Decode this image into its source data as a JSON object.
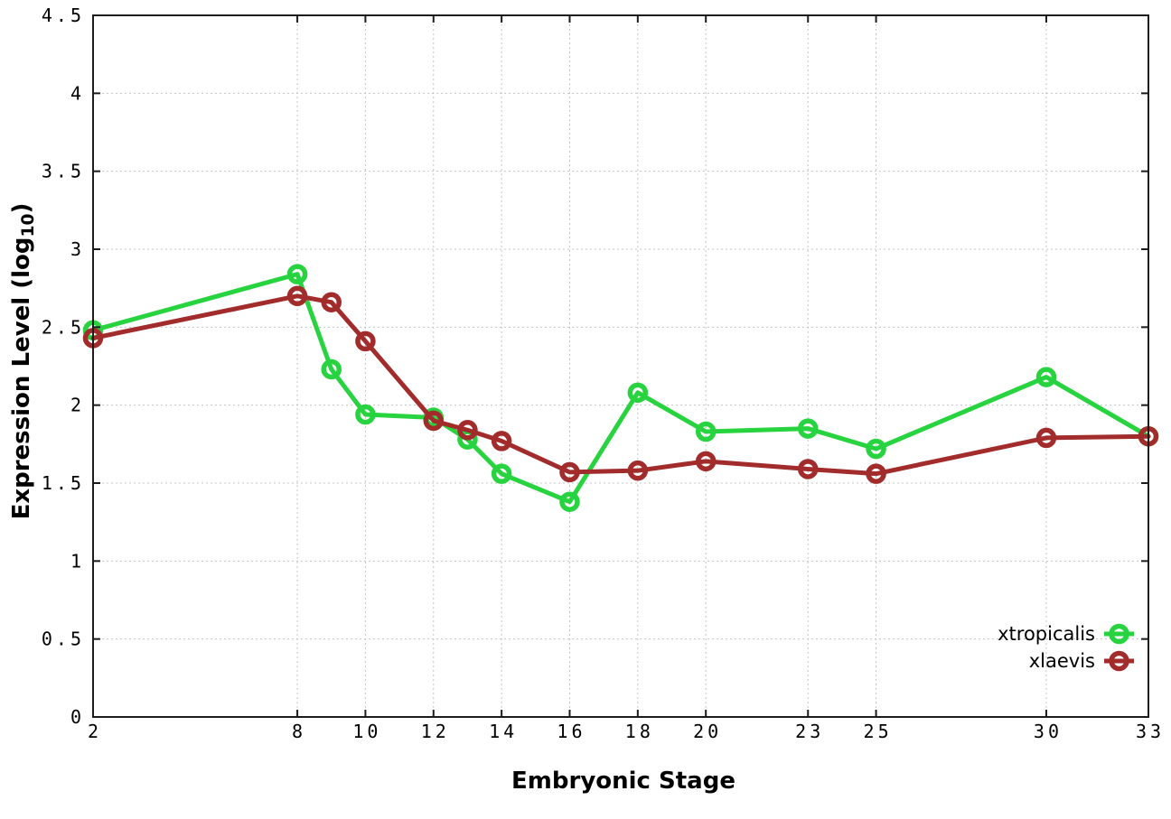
{
  "figure": {
    "background": "#ffffff",
    "border_color": "#1c1c1c",
    "grid_color": "#c4c4c4",
    "text_color": "#000000",
    "ylabel_main": "Expression Level (log",
    "ylabel_sub": "10",
    "ylabel_close": ")"
  },
  "chart_data": {
    "type": "line",
    "title": "",
    "xlabel": "Embryonic Stage",
    "ylabel": "Expression Level (log10)",
    "x": [
      2,
      8,
      9,
      10,
      12,
      13,
      14,
      16,
      18,
      20,
      23,
      25,
      30,
      33
    ],
    "series": [
      {
        "name": "xtropicalis",
        "color": "#27d33f",
        "marker": "open-circle",
        "values": [
          2.48,
          2.84,
          2.23,
          1.94,
          1.92,
          1.78,
          1.56,
          1.38,
          2.08,
          1.83,
          1.85,
          1.72,
          2.18,
          1.8
        ]
      },
      {
        "name": "xlaevis",
        "color": "#a22c2c",
        "marker": "open-circle",
        "values": [
          2.43,
          2.7,
          2.66,
          2.41,
          1.9,
          1.84,
          1.77,
          1.57,
          1.58,
          1.64,
          1.59,
          1.56,
          1.79,
          1.8
        ]
      }
    ],
    "x_ticks": [
      2,
      8,
      10,
      12,
      14,
      16,
      18,
      20,
      23,
      25,
      30,
      33
    ],
    "y_ticks": [
      0,
      0.5,
      1,
      1.5,
      2,
      2.5,
      3,
      3.5,
      4,
      4.5
    ],
    "x_tick_labels": [
      "2",
      "8",
      "10",
      "12",
      "14",
      "16",
      "18",
      "20",
      "23",
      "25",
      "30",
      "33"
    ],
    "y_tick_labels": [
      "0",
      "0.5",
      "1",
      "1.5",
      "2",
      "2.5",
      "3",
      "3.5",
      "4",
      "4.5"
    ],
    "xlim": [
      2,
      33
    ],
    "ylim": [
      0,
      4.5
    ],
    "grid": true,
    "legend_position": "bottom-right"
  }
}
